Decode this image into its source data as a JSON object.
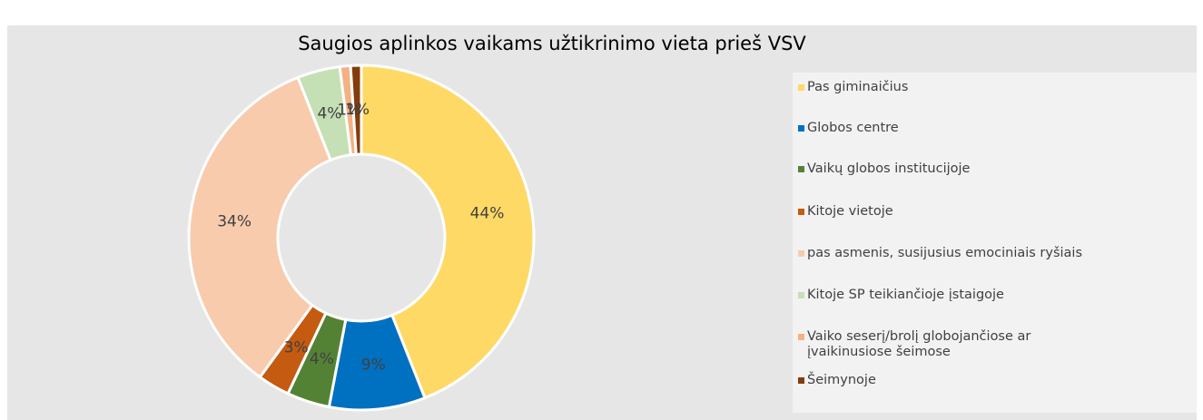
{
  "chart_data": {
    "type": "donut",
    "title": "Saugios aplinkos vaikams užtikrinimo vieta prieš VSV",
    "categories": [
      "Pas giminaičius",
      "Globos centre",
      "Vaikų globos institucijoje",
      "Kitoje vietoje",
      "pas asmenis, susijusius emociniais ryšiais",
      "Kitoje SP teikiančioje įstaigoje",
      "Vaiko seserį/brolį globojančiose ar įvaikinusiose šeimose",
      "Šeimynoje"
    ],
    "values": [
      44,
      9,
      4,
      3,
      34,
      4,
      1,
      1
    ],
    "value_labels": [
      "44%",
      "9%",
      "4%",
      "3%",
      "34%",
      "4%",
      "1%",
      "1%"
    ],
    "colors": [
      "#ffd966",
      "#0070c0",
      "#548235",
      "#c55a11",
      "#f8cbad",
      "#c5e0b4",
      "#f4b183",
      "#843c0c"
    ],
    "legend": "right"
  }
}
